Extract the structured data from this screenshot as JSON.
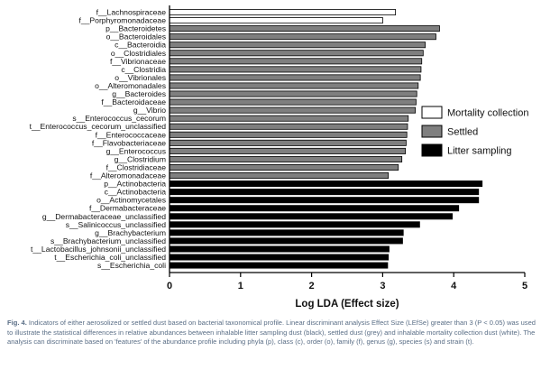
{
  "chart_data": {
    "type": "bar",
    "orientation": "horizontal",
    "xlabel": "Log LDA (Effect size)",
    "xlim": [
      0,
      5
    ],
    "xticks": [
      0,
      1,
      2,
      3,
      4,
      5
    ],
    "grid": false,
    "legend_position": "right",
    "series": [
      {
        "name": "Mortality collection",
        "color": "#ffffff"
      },
      {
        "name": "Settled",
        "color": "#7f7f7f"
      },
      {
        "name": "Litter sampling",
        "color": "#000000"
      }
    ],
    "bars": [
      {
        "label": "f__Lachnospiraceae",
        "value": 3.18,
        "group": 0
      },
      {
        "label": "f__Porphyromonadaceae",
        "value": 3.0,
        "group": 0
      },
      {
        "label": "p__Bacteroidetes",
        "value": 3.8,
        "group": 1
      },
      {
        "label": "o__Bacteroidales",
        "value": 3.75,
        "group": 1
      },
      {
        "label": "c__Bacteroidia",
        "value": 3.6,
        "group": 1
      },
      {
        "label": "o__Clostridiales",
        "value": 3.57,
        "group": 1
      },
      {
        "label": "f__Vibrionaceae",
        "value": 3.55,
        "group": 1
      },
      {
        "label": "c__Clostridia",
        "value": 3.54,
        "group": 1
      },
      {
        "label": "o__Vibrionales",
        "value": 3.53,
        "group": 1
      },
      {
        "label": "o__Alteromonadales",
        "value": 3.5,
        "group": 1
      },
      {
        "label": "g__Bacteroides",
        "value": 3.48,
        "group": 1
      },
      {
        "label": "f__Bacteroidaceae",
        "value": 3.47,
        "group": 1
      },
      {
        "label": "g__Vibrio",
        "value": 3.46,
        "group": 1
      },
      {
        "label": "s__Enterococcus_cecorum",
        "value": 3.36,
        "group": 1
      },
      {
        "label": "t__Enterococcus_cecorum_unclassified",
        "value": 3.35,
        "group": 1
      },
      {
        "label": "f__Enterococcaceae",
        "value": 3.34,
        "group": 1
      },
      {
        "label": "f__Flavobacteriaceae",
        "value": 3.33,
        "group": 1
      },
      {
        "label": "g__Enterococcus",
        "value": 3.32,
        "group": 1
      },
      {
        "label": "g__Clostridium",
        "value": 3.27,
        "group": 1
      },
      {
        "label": "f__Clostridiaceae",
        "value": 3.22,
        "group": 1
      },
      {
        "label": "f__Alteromonadaceae",
        "value": 3.08,
        "group": 1
      },
      {
        "label": "p__Actinobacteria",
        "value": 4.4,
        "group": 2
      },
      {
        "label": "c__Actinobacteria",
        "value": 4.35,
        "group": 2
      },
      {
        "label": "o__Actinomycetales",
        "value": 4.35,
        "group": 2
      },
      {
        "label": "f__Dermabacteraceae",
        "value": 4.07,
        "group": 2
      },
      {
        "label": "g__Dermabacteraceae_unclassified",
        "value": 3.98,
        "group": 2
      },
      {
        "label": "s__Salinicoccus_unclassified",
        "value": 3.52,
        "group": 2
      },
      {
        "label": "g__Brachybacterium",
        "value": 3.29,
        "group": 2
      },
      {
        "label": "s__Brachybacterium_unclassified",
        "value": 3.28,
        "group": 2
      },
      {
        "label": "t__Lactobacillus_johnsonii_unclassified",
        "value": 3.09,
        "group": 2
      },
      {
        "label": "t__Escherichia_coli_unclassified",
        "value": 3.08,
        "group": 2
      },
      {
        "label": "s__Escherichia_coli",
        "value": 3.07,
        "group": 2
      }
    ]
  },
  "caption": {
    "label": "Fig. 4.",
    "text": "Indicators of either aerosolized or settled dust based on bacterial taxonomical profile. Linear discriminant analysis Effect Size (LEfSe) greater than 3 (P < 0.05) was used to illustrate the statistical differences in relative abundances between inhalable litter sampling dust (black), settled dust (grey) and inhalable mortality collection dust (white). The analysis can discriminate based on 'features' of the abundance profile including phyla (p), class (c), order (o), family (f), genus (g), species (s) and strain (t)."
  }
}
